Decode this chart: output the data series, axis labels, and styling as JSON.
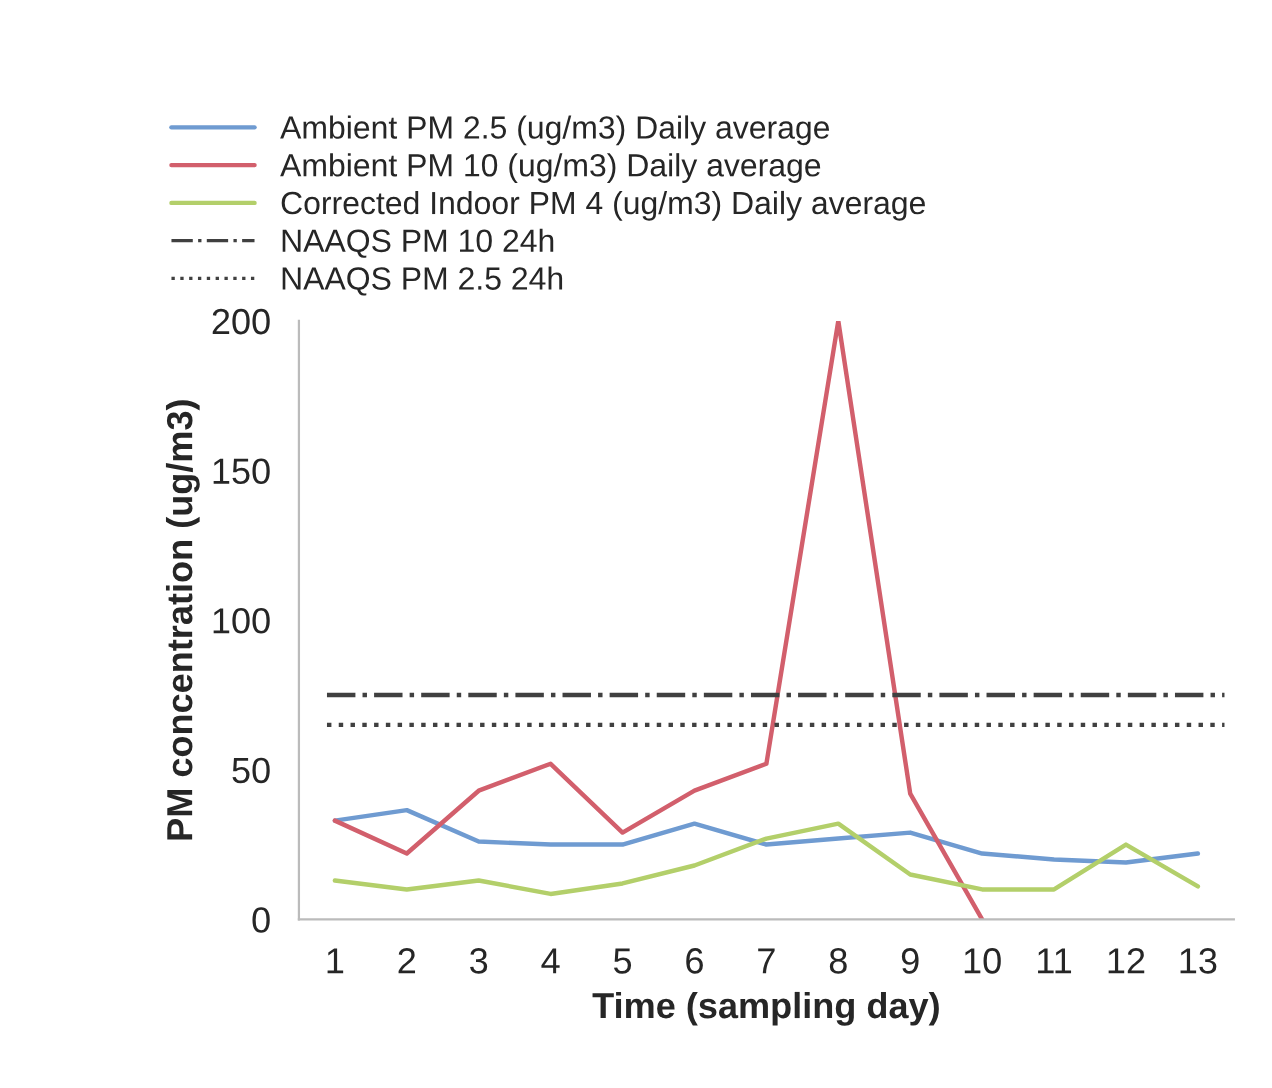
{
  "chart_data": {
    "type": "line",
    "xlabel": "Time (sampling day)",
    "ylabel": "PM concentration (ug/m3)",
    "x": [
      1,
      2,
      3,
      4,
      5,
      6,
      7,
      8,
      9,
      10,
      11,
      12,
      13
    ],
    "xlim": [
      0.5,
      13.5
    ],
    "xticks": [
      1,
      2,
      3,
      4,
      5,
      6,
      7,
      8,
      9,
      10,
      11,
      12,
      13
    ],
    "ylim": [
      0,
      200
    ],
    "yticks": [
      0,
      50,
      100,
      150,
      200
    ],
    "series": [
      {
        "name": "Ambient PM 2.5 (ug/m3) Daily average",
        "color": "#6f9bd1",
        "values": [
          33,
          36.5,
          26,
          25,
          25,
          32,
          25,
          27,
          29,
          22,
          20,
          19,
          22
        ]
      },
      {
        "name": "Ambient PM 10 (ug/m3) Daily average",
        "color": "#d25f6c",
        "values": [
          33,
          22,
          43,
          52,
          29,
          43,
          52,
          200,
          42,
          0,
          null,
          null,
          null
        ]
      },
      {
        "name": "Corrected Indoor PM 4 (ug/m3) Daily average",
        "color": "#b3cf6a",
        "values": [
          13,
          10,
          13,
          8.5,
          12,
          18,
          27,
          32,
          15,
          10,
          10,
          25,
          11
        ]
      }
    ],
    "ref_lines": [
      {
        "axis": "y",
        "value": 75,
        "label": "NAAQS PM 10 24h",
        "color": "#404040",
        "line_style": "dashdot"
      },
      {
        "axis": "y",
        "value": 65,
        "label": "NAAQS PM 2.5 24h",
        "color": "#404040",
        "line_style": "dotted"
      }
    ],
    "grid": false,
    "legend": "top left",
    "line_style": "solid",
    "marker": "none"
  }
}
